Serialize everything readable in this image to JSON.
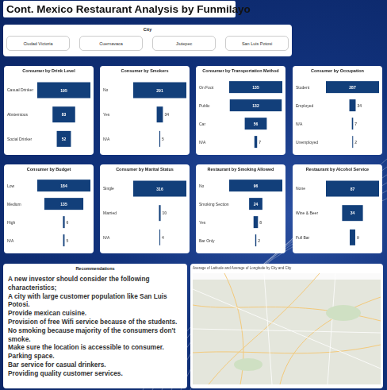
{
  "title": "Cont. Mexico Restaurant Analysis by Funmilayo",
  "slicer": {
    "title": "City",
    "items": [
      "Ciudad Victoria",
      "Cuernavaca",
      "Jiutepec",
      "San Luis Potosi"
    ]
  },
  "chart_data": [
    {
      "type": "funnel",
      "title": "Consumer by Drink Level",
      "categories": [
        "Casual Drinker",
        "Abstemious",
        "Social Drinker"
      ],
      "values": [
        195,
        83,
        52
      ],
      "color": "#123f7a",
      "orientation": "horizontal",
      "data_labels": true,
      "tick_labels": "y"
    },
    {
      "type": "funnel",
      "title": "Consumer by Smokers",
      "categories": [
        "No",
        "Yes",
        "N/A"
      ],
      "values": [
        291,
        34,
        5
      ],
      "color": "#123f7a",
      "orientation": "horizontal",
      "data_labels": true,
      "tick_labels": "y"
    },
    {
      "type": "funnel",
      "title": "Consumer by Transportation Method",
      "categories": [
        "On Foot",
        "Public",
        "Car",
        "N/A"
      ],
      "values": [
        135,
        132,
        56,
        7
      ],
      "color": "#123f7a",
      "orientation": "horizontal",
      "data_labels": true,
      "tick_labels": "y"
    },
    {
      "type": "funnel",
      "title": "Consumer by Occupation",
      "categories": [
        "Student",
        "Employed",
        "N/A",
        "Unemployed"
      ],
      "values": [
        287,
        34,
        7,
        2
      ],
      "color": "#123f7a",
      "orientation": "horizontal",
      "data_labels": true,
      "tick_labels": "y"
    },
    {
      "type": "funnel",
      "title": "Consumer by Budget",
      "categories": [
        "Low",
        "Medium",
        "High",
        "N/A"
      ],
      "values": [
        184,
        135,
        6,
        5
      ],
      "color": "#123f7a",
      "orientation": "horizontal",
      "data_labels": true,
      "tick_labels": "y"
    },
    {
      "type": "funnel",
      "title": "Consumer by Marital Status",
      "categories": [
        "Single",
        "Married",
        "N/A"
      ],
      "values": [
        316,
        10,
        4
      ],
      "color": "#123f7a",
      "orientation": "horizontal",
      "data_labels": true,
      "tick_labels": "y"
    },
    {
      "type": "funnel",
      "title": "Restaurant by Smoking Allowed",
      "categories": [
        "No",
        "Smoking Section",
        "Yes",
        "Bar Only"
      ],
      "values": [
        96,
        24,
        8,
        2
      ],
      "color": "#123f7a",
      "orientation": "horizontal",
      "data_labels": true,
      "tick_labels": "y"
    },
    {
      "type": "funnel",
      "title": "Restaurant by Alcohol Service",
      "categories": [
        "None",
        "Wine & Beer",
        "Full Bar"
      ],
      "values": [
        87,
        34,
        9
      ],
      "color": "#123f7a",
      "orientation": "horizontal",
      "data_labels": true,
      "tick_labels": "y"
    }
  ],
  "recommendations": {
    "title": "Recommendations",
    "lines": [
      "A new investor should consider the following characteristics;",
      "A city with large customer population like San Luis Potosi.",
      "Provide mexican cuisine.",
      "Provision of free Wifi service because of the students.",
      "No smoking because majority of the consumers don't smoke.",
      "Make sure the location is accessible to consumer.",
      "Parking space.",
      "Bar service for casual drinkers.",
      "Providing quality customer services."
    ]
  },
  "map": {
    "title": "Average of Latitude and Average of Longitude by City and City"
  }
}
